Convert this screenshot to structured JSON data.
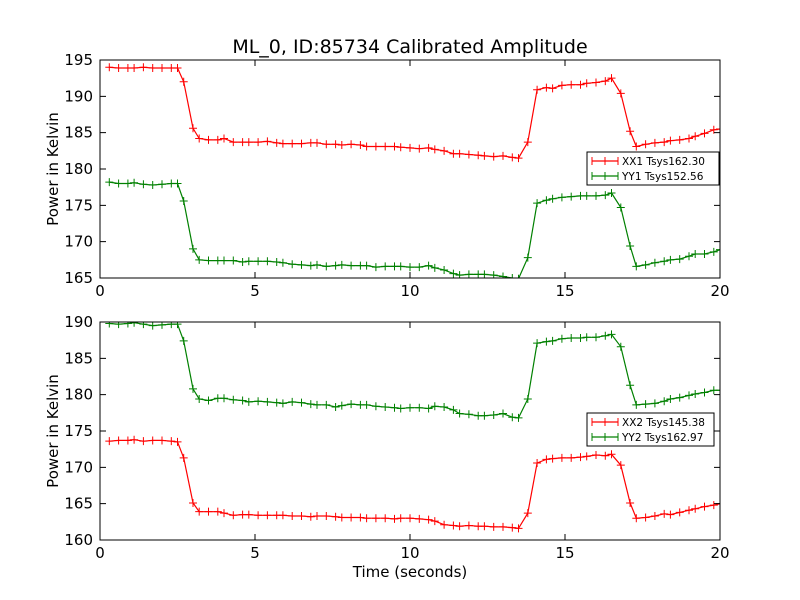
{
  "title": "ML_0, ID:85734 Calibrated Amplitude",
  "chart_data": [
    {
      "type": "line",
      "ylabel": "Power in Kelvin",
      "xlabel": "",
      "xlim": [
        0,
        20
      ],
      "ylim": [
        165,
        195
      ],
      "xticks": [
        0,
        5,
        10,
        15,
        20
      ],
      "yticks": [
        165,
        170,
        175,
        180,
        185,
        190,
        195
      ],
      "grid": false,
      "legend_position": "center-right",
      "x": [
        0.3,
        0.6,
        0.9,
        1.1,
        1.4,
        1.7,
        2.0,
        2.3,
        2.5,
        2.7,
        3.0,
        3.2,
        3.5,
        3.8,
        4.0,
        4.3,
        4.6,
        4.8,
        5.1,
        5.4,
        5.7,
        5.9,
        6.2,
        6.5,
        6.8,
        7.0,
        7.3,
        7.6,
        7.8,
        8.1,
        8.4,
        8.6,
        8.9,
        9.2,
        9.5,
        9.7,
        10.0,
        10.3,
        10.6,
        10.8,
        11.1,
        11.4,
        11.6,
        11.9,
        12.2,
        12.4,
        12.7,
        13.0,
        13.3,
        13.5,
        13.8,
        14.1,
        14.4,
        14.6,
        14.9,
        15.2,
        15.5,
        15.7,
        16.0,
        16.3,
        16.5,
        16.8,
        17.1,
        17.3,
        17.6,
        17.9,
        18.2,
        18.4,
        18.7,
        19.0,
        19.2,
        19.5,
        19.8,
        20.0
      ],
      "series": [
        {
          "name": "XX1 Tsys162.30",
          "color": "#ff0000",
          "values": [
            194.0,
            193.9,
            193.9,
            193.9,
            194.0,
            193.9,
            193.9,
            193.9,
            193.9,
            192.0,
            185.6,
            184.2,
            184.0,
            184.0,
            184.2,
            183.7,
            183.7,
            183.7,
            183.7,
            183.8,
            183.6,
            183.5,
            183.5,
            183.5,
            183.6,
            183.6,
            183.4,
            183.4,
            183.3,
            183.4,
            183.3,
            183.1,
            183.1,
            183.1,
            183.1,
            183.0,
            182.9,
            182.8,
            182.9,
            182.7,
            182.5,
            182.1,
            182.1,
            182.0,
            181.9,
            181.8,
            181.7,
            181.8,
            181.6,
            181.5,
            183.7,
            190.9,
            191.2,
            191.1,
            191.5,
            191.6,
            191.6,
            191.8,
            191.9,
            192.1,
            192.5,
            190.4,
            185.2,
            183.1,
            183.4,
            183.6,
            183.7,
            183.9,
            184.0,
            184.2,
            184.5,
            184.9,
            185.4,
            185.5
          ]
        },
        {
          "name": "YY1 Tsys152.56",
          "color": "#008000",
          "values": [
            178.2,
            178.0,
            178.0,
            178.1,
            177.9,
            177.8,
            177.9,
            178.0,
            178.0,
            175.6,
            169.0,
            167.5,
            167.4,
            167.4,
            167.4,
            167.4,
            167.2,
            167.3,
            167.3,
            167.3,
            167.2,
            167.1,
            166.9,
            166.8,
            166.7,
            166.8,
            166.6,
            166.7,
            166.8,
            166.7,
            166.7,
            166.7,
            166.5,
            166.6,
            166.6,
            166.6,
            166.5,
            166.5,
            166.7,
            166.4,
            166.1,
            165.6,
            165.4,
            165.5,
            165.5,
            165.5,
            165.4,
            165.2,
            165.0,
            164.9,
            167.8,
            175.3,
            175.7,
            175.9,
            176.1,
            176.2,
            176.3,
            176.3,
            176.3,
            176.4,
            176.7,
            174.7,
            169.4,
            166.6,
            166.8,
            167.1,
            167.3,
            167.5,
            167.6,
            168.0,
            168.3,
            168.3,
            168.6,
            168.9
          ]
        }
      ]
    },
    {
      "type": "line",
      "ylabel": "Power in Kelvin",
      "xlabel": "Time (seconds)",
      "xlim": [
        0,
        20
      ],
      "ylim": [
        160,
        190
      ],
      "xticks": [
        0,
        5,
        10,
        15,
        20
      ],
      "yticks": [
        160,
        165,
        170,
        175,
        180,
        185,
        190
      ],
      "grid": false,
      "legend_position": "center-right",
      "x": [
        0.3,
        0.6,
        0.9,
        1.1,
        1.4,
        1.7,
        2.0,
        2.3,
        2.5,
        2.7,
        3.0,
        3.2,
        3.5,
        3.8,
        4.0,
        4.3,
        4.6,
        4.8,
        5.1,
        5.4,
        5.7,
        5.9,
        6.2,
        6.5,
        6.8,
        7.0,
        7.3,
        7.6,
        7.8,
        8.1,
        8.4,
        8.6,
        8.9,
        9.2,
        9.5,
        9.7,
        10.0,
        10.3,
        10.6,
        10.8,
        11.1,
        11.4,
        11.6,
        11.9,
        12.2,
        12.4,
        12.7,
        13.0,
        13.3,
        13.5,
        13.8,
        14.1,
        14.4,
        14.6,
        14.9,
        15.2,
        15.5,
        15.7,
        16.0,
        16.3,
        16.5,
        16.8,
        17.1,
        17.3,
        17.6,
        17.9,
        18.2,
        18.4,
        18.7,
        19.0,
        19.2,
        19.5,
        19.8,
        20.0
      ],
      "series": [
        {
          "name": "XX2 Tsys145.38",
          "color": "#ff0000",
          "values": [
            173.6,
            173.7,
            173.7,
            173.8,
            173.6,
            173.7,
            173.7,
            173.6,
            173.5,
            171.3,
            165.1,
            163.9,
            163.9,
            163.9,
            163.7,
            163.4,
            163.5,
            163.5,
            163.4,
            163.4,
            163.4,
            163.4,
            163.3,
            163.3,
            163.2,
            163.3,
            163.3,
            163.2,
            163.1,
            163.1,
            163.1,
            163.0,
            163.0,
            163.0,
            162.9,
            163.0,
            163.0,
            162.9,
            162.8,
            162.6,
            162.1,
            162.0,
            161.9,
            162.0,
            161.9,
            161.9,
            161.8,
            161.8,
            161.7,
            161.6,
            163.7,
            170.6,
            171.1,
            171.2,
            171.3,
            171.3,
            171.4,
            171.5,
            171.7,
            171.6,
            171.8,
            170.3,
            165.1,
            163.0,
            163.1,
            163.3,
            163.6,
            163.5,
            163.8,
            164.1,
            164.3,
            164.6,
            164.8,
            165.0
          ]
        },
        {
          "name": "YY2 Tsys162.97",
          "color": "#008000",
          "values": [
            189.8,
            189.7,
            189.8,
            189.9,
            189.7,
            189.5,
            189.6,
            189.7,
            189.7,
            187.4,
            180.8,
            179.4,
            179.2,
            179.5,
            179.5,
            179.3,
            179.2,
            179.0,
            179.1,
            179.0,
            178.9,
            178.8,
            179.0,
            178.9,
            178.7,
            178.6,
            178.6,
            178.3,
            178.5,
            178.7,
            178.6,
            178.6,
            178.4,
            178.3,
            178.2,
            178.1,
            178.2,
            178.2,
            178.1,
            178.4,
            178.3,
            177.9,
            177.4,
            177.3,
            177.1,
            177.1,
            177.2,
            177.4,
            176.9,
            176.8,
            179.4,
            187.1,
            187.3,
            187.4,
            187.7,
            187.8,
            187.8,
            187.9,
            187.9,
            188.1,
            188.3,
            186.6,
            181.3,
            178.6,
            178.7,
            178.8,
            179.1,
            179.4,
            179.6,
            179.9,
            180.1,
            180.3,
            180.6,
            180.6
          ]
        }
      ]
    }
  ]
}
